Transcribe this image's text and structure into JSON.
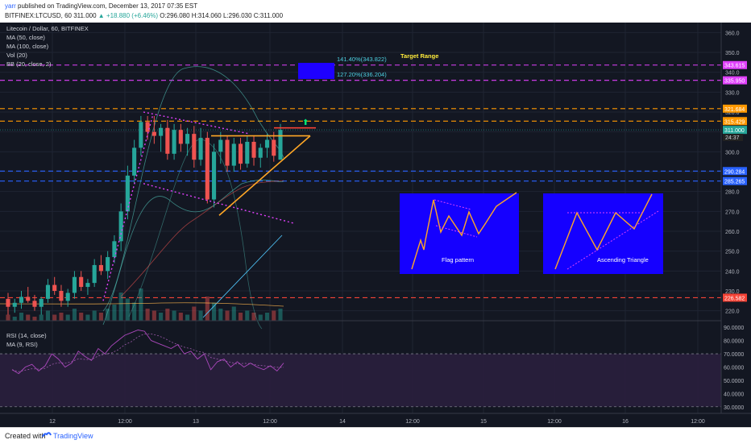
{
  "header": {
    "user": "yarr",
    "published_text": "published on TradingView.com, December 13, 2017 07:35 EST",
    "symbol": "BITFINEX:LTCUSD, 60",
    "last": "311.000",
    "change": "+18.880 (+6.46%)",
    "ohlc": "O:296.080 H:314.060 L:296.030 C:311.000"
  },
  "legend": {
    "title": "Litecoin / Dollar, 60, BITFINEX",
    "ma50": "MA (50, close)",
    "ma100": "MA (100, close)",
    "vol": "Vol (20)",
    "bb": "BB (20, close, 2)",
    "rsi": "RSI (14, close)",
    "rsi_ma": "MA (9, RSI)"
  },
  "annotations": {
    "target_range": "Target Range",
    "fib_141": "141.40%(343.822)",
    "fib_127": "127.20%(336.204)",
    "flag_pattern": "Flag pattern",
    "ascending_triangle": "Ascending Triangle",
    "countdown": "24:37"
  },
  "footer": {
    "created_with": "Created with",
    "brand": "TradingView"
  },
  "colors": {
    "background": "#131722",
    "up": "#26a69a",
    "down": "#ef5350",
    "magenta_line": "#e040fb",
    "orange_line": "#ff9800",
    "blue_line": "#2962ff",
    "red_line": "#f44336",
    "triangle": "#ffa726",
    "pattern_box": "#1500ff",
    "target_box": "#1e00ff",
    "rsi_band": "#2a1f3d"
  },
  "chart_data": {
    "type": "candlestick",
    "title": "Litecoin / Dollar, 60, BITFINEX",
    "price_axis": {
      "min": 215,
      "max": 365,
      "ticks": [
        360,
        350,
        340,
        330,
        320,
        310,
        300,
        290,
        280,
        270,
        260,
        250,
        240,
        230,
        220
      ]
    },
    "rsi_axis": {
      "ticks": [
        "90.0000",
        "80.0000",
        "70.0000",
        "60.0000",
        "50.0000",
        "40.0000",
        "30.0000"
      ],
      "overbought": 70,
      "oversold": 30
    },
    "time_axis": [
      "12",
      "12:00",
      "13",
      "12:00",
      "14",
      "12:00",
      "15",
      "12:00",
      "16",
      "12:00"
    ],
    "price_labels": [
      {
        "value": 343.615,
        "text": "343.615",
        "color": "#e040fb"
      },
      {
        "value": 335.95,
        "text": "335.950",
        "color": "#e040fb"
      },
      {
        "value": 321.684,
        "text": "321.684",
        "color": "#ff9800"
      },
      {
        "value": 315.429,
        "text": "315.429",
        "color": "#ff9800"
      },
      {
        "value": 311.0,
        "text": "311.000",
        "color": "#26a69a"
      },
      {
        "value": 290.284,
        "text": "290.284",
        "color": "#2962ff"
      },
      {
        "value": 285.265,
        "text": "285.265",
        "color": "#2962ff"
      },
      {
        "value": 226.582,
        "text": "226.582",
        "color": "#f44336"
      }
    ],
    "horizontal_levels": [
      {
        "value": 343.615,
        "color": "#e040fb",
        "style": "dashed"
      },
      {
        "value": 335.95,
        "color": "#e040fb",
        "style": "dashed"
      },
      {
        "value": 321.684,
        "color": "#ff9800",
        "style": "dashed"
      },
      {
        "value": 315.429,
        "color": "#ff9800",
        "style": "dashed"
      },
      {
        "value": 290.284,
        "color": "#2962ff",
        "style": "dashed"
      },
      {
        "value": 285.265,
        "color": "#2962ff",
        "style": "dashed"
      },
      {
        "value": 226.582,
        "color": "#f44336",
        "style": "dashed"
      }
    ],
    "candles": [
      [
        226,
        229,
        218,
        222
      ],
      [
        222,
        226,
        219,
        224
      ],
      [
        224,
        230,
        221,
        227
      ],
      [
        227,
        232,
        224,
        225
      ],
      [
        225,
        228,
        220,
        222
      ],
      [
        222,
        227,
        218,
        226
      ],
      [
        226,
        236,
        224,
        233
      ],
      [
        233,
        237,
        228,
        230
      ],
      [
        230,
        233,
        222,
        225
      ],
      [
        225,
        231,
        222,
        229
      ],
      [
        229,
        240,
        226,
        237
      ],
      [
        237,
        240,
        230,
        232
      ],
      [
        232,
        236,
        228,
        234
      ],
      [
        234,
        246,
        232,
        243
      ],
      [
        243,
        248,
        238,
        240
      ],
      [
        240,
        250,
        236,
        247
      ],
      [
        247,
        258,
        244,
        255
      ],
      [
        255,
        274,
        250,
        270
      ],
      [
        270,
        293,
        266,
        288
      ],
      [
        288,
        306,
        284,
        302
      ],
      [
        302,
        318,
        298,
        315
      ],
      [
        315,
        318,
        306,
        310
      ],
      [
        310,
        318,
        304,
        308
      ],
      [
        308,
        314,
        300,
        312
      ],
      [
        312,
        316,
        296,
        299
      ],
      [
        299,
        314,
        296,
        311
      ],
      [
        311,
        314,
        300,
        304
      ],
      [
        304,
        312,
        298,
        309
      ],
      [
        309,
        313,
        292,
        296
      ],
      [
        296,
        312,
        293,
        307
      ],
      [
        307,
        310,
        274,
        276
      ],
      [
        276,
        304,
        272,
        300
      ],
      [
        300,
        310,
        294,
        306
      ],
      [
        306,
        308,
        290,
        293
      ],
      [
        293,
        307,
        290,
        304
      ],
      [
        304,
        307,
        291,
        294
      ],
      [
        294,
        308,
        292,
        305
      ],
      [
        305,
        308,
        293,
        297
      ],
      [
        297,
        304,
        292,
        302
      ],
      [
        302,
        309,
        297,
        306
      ],
      [
        306,
        310,
        295,
        298
      ],
      [
        296,
        314,
        296,
        311
      ]
    ],
    "volume": [
      3,
      2,
      4,
      3,
      2,
      3,
      5,
      3,
      4,
      3,
      6,
      4,
      3,
      5,
      4,
      6,
      8,
      14,
      11,
      9,
      16,
      6,
      5,
      4,
      6,
      5,
      4,
      3,
      7,
      5,
      12,
      9,
      6,
      5,
      7,
      4,
      5,
      4,
      3,
      4,
      5,
      6
    ],
    "rsi": [
      58,
      55,
      60,
      62,
      57,
      61,
      70,
      66,
      60,
      63,
      72,
      68,
      65,
      74,
      70,
      76,
      80,
      84,
      86,
      88,
      87,
      80,
      78,
      76,
      74,
      77,
      70,
      72,
      66,
      70,
      58,
      64,
      66,
      60,
      64,
      60,
      63,
      60,
      58,
      61,
      57,
      63
    ],
    "patterns": {
      "bull_flag_top": [
        [
          178,
          320
        ],
        [
          310,
          309
        ]
      ],
      "bull_flag_bottom": [
        [
          178,
          284
        ],
        [
          365,
          264
        ]
      ],
      "flagpole": [
        [
          128,
          225
        ],
        [
          190,
          319
        ]
      ],
      "triangle_top": [
        [
          262,
          308
        ],
        [
          385,
          308
        ]
      ],
      "triangle_bottom": [
        [
          272,
          268
        ],
        [
          385,
          308
        ]
      ],
      "resistance_line": [
        [
          340,
          312
        ],
        [
          392,
          312
        ]
      ]
    }
  }
}
